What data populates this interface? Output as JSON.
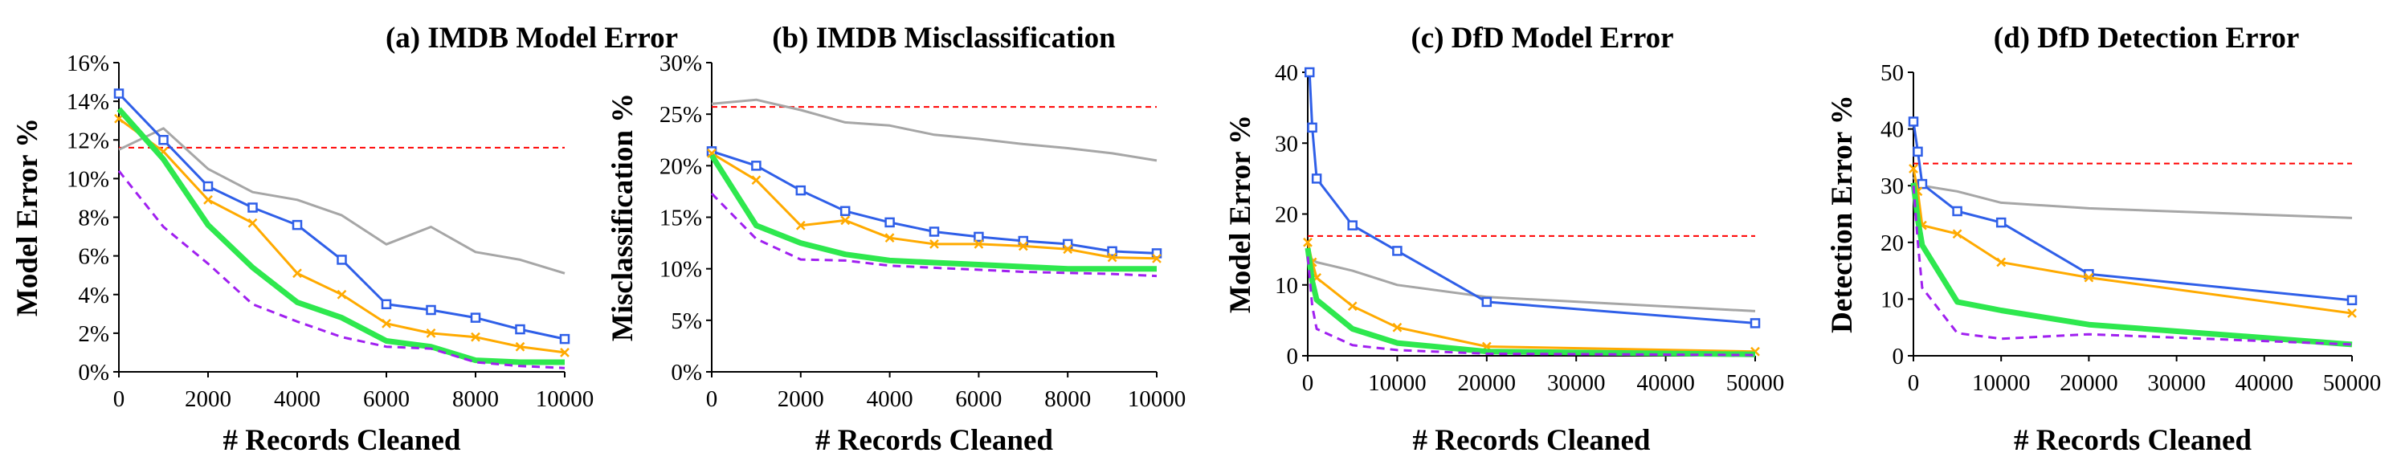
{
  "chart_data": [
    {
      "type": "line",
      "title": "(a) IMDB Model Error",
      "xlabel": "# Records Cleaned",
      "ylabel": "Model Error %",
      "xlim": [
        0,
        10000
      ],
      "ylim": [
        0,
        16
      ],
      "xticks": [
        0,
        2000,
        4000,
        6000,
        8000,
        10000
      ],
      "xtick_labels": [
        "0",
        "2000",
        "4000",
        "6000",
        "8000",
        "10000"
      ],
      "yticks": [
        0,
        2,
        4,
        6,
        8,
        10,
        12,
        14,
        16
      ],
      "ytick_labels": [
        "0%",
        "2%",
        "4%",
        "6%",
        "8%",
        "10%",
        "12%",
        "14%",
        "16%"
      ],
      "grid": false,
      "reference_line": 11.6,
      "series": [
        {
          "color": "#a6a6a6",
          "style": "solid",
          "width": 3,
          "marker": "none",
          "x": [
            0,
            1000,
            2000,
            3000,
            4000,
            5000,
            6000,
            7000,
            8000,
            9000,
            10000
          ],
          "y": [
            11.5,
            12.6,
            10.5,
            9.3,
            8.9,
            8.1,
            6.6,
            7.5,
            6.2,
            5.8,
            5.1
          ]
        },
        {
          "color": "#2f5fe8",
          "style": "solid",
          "width": 3,
          "marker": "square",
          "x": [
            0,
            1000,
            2000,
            3000,
            4000,
            5000,
            6000,
            7000,
            8000,
            9000,
            10000
          ],
          "y": [
            14.4,
            12.0,
            9.6,
            8.5,
            7.6,
            5.8,
            3.5,
            3.2,
            2.8,
            2.2,
            1.7
          ]
        },
        {
          "color": "#ffaa00",
          "style": "solid",
          "width": 3,
          "marker": "x",
          "x": [
            0,
            1000,
            2000,
            3000,
            4000,
            5000,
            6000,
            7000,
            8000,
            9000,
            10000
          ],
          "y": [
            13.1,
            11.4,
            8.9,
            7.7,
            5.1,
            4.0,
            2.5,
            2.0,
            1.8,
            1.3,
            1.0
          ]
        },
        {
          "color": "#2ee84e",
          "style": "solid",
          "width": 7,
          "marker": "none",
          "x": [
            0,
            1000,
            2000,
            3000,
            4000,
            5000,
            6000,
            7000,
            8000,
            9000,
            10000
          ],
          "y": [
            13.6,
            11.0,
            7.6,
            5.4,
            3.6,
            2.8,
            1.6,
            1.3,
            0.6,
            0.5,
            0.5
          ]
        },
        {
          "color": "#a020f0",
          "style": "dashed",
          "width": 3,
          "marker": "none",
          "x": [
            0,
            1000,
            2000,
            3000,
            4000,
            5000,
            6000,
            7000,
            8000,
            9000,
            10000
          ],
          "y": [
            10.4,
            7.5,
            5.6,
            3.5,
            2.6,
            1.8,
            1.3,
            1.2,
            0.5,
            0.3,
            0.2
          ]
        }
      ]
    },
    {
      "type": "line",
      "title": "(b) IMDB Misclassification",
      "xlabel": "# Records Cleaned",
      "ylabel": "Misclassification %",
      "xlim": [
        0,
        10000
      ],
      "ylim": [
        0,
        30
      ],
      "xticks": [
        0,
        2000,
        4000,
        6000,
        8000,
        10000
      ],
      "xtick_labels": [
        "0",
        "2000",
        "4000",
        "6000",
        "8000",
        "10000"
      ],
      "yticks": [
        0,
        5,
        10,
        15,
        20,
        25,
        30
      ],
      "ytick_labels": [
        "0%",
        "5%",
        "10%",
        "15%",
        "20%",
        "25%",
        "30%"
      ],
      "grid": false,
      "reference_line": 25.7,
      "series": [
        {
          "color": "#a6a6a6",
          "style": "solid",
          "width": 3,
          "marker": "none",
          "x": [
            0,
            1000,
            2000,
            3000,
            4000,
            5000,
            6000,
            7000,
            8000,
            9000,
            10000
          ],
          "y": [
            26.0,
            26.4,
            25.4,
            24.2,
            23.9,
            23.0,
            22.6,
            22.1,
            21.7,
            21.2,
            20.5
          ]
        },
        {
          "color": "#2f5fe8",
          "style": "solid",
          "width": 3,
          "marker": "square",
          "x": [
            0,
            1000,
            2000,
            3000,
            4000,
            5000,
            6000,
            7000,
            8000,
            9000,
            10000
          ],
          "y": [
            21.4,
            20.0,
            17.6,
            15.6,
            14.5,
            13.6,
            13.1,
            12.7,
            12.4,
            11.7,
            11.5
          ]
        },
        {
          "color": "#ffaa00",
          "style": "solid",
          "width": 3,
          "marker": "x",
          "x": [
            0,
            1000,
            2000,
            3000,
            4000,
            5000,
            6000,
            7000,
            8000,
            9000,
            10000
          ],
          "y": [
            21.2,
            18.6,
            14.2,
            14.7,
            13.0,
            12.4,
            12.4,
            12.2,
            11.9,
            11.1,
            11.0
          ]
        },
        {
          "color": "#2ee84e",
          "style": "solid",
          "width": 7,
          "marker": "none",
          "x": [
            0,
            1000,
            2000,
            3000,
            4000,
            5000,
            6000,
            7000,
            8000,
            9000,
            10000
          ],
          "y": [
            21.0,
            14.2,
            12.5,
            11.4,
            10.8,
            10.6,
            10.4,
            10.2,
            10.0,
            10.0,
            10.0
          ]
        },
        {
          "color": "#a020f0",
          "style": "dashed",
          "width": 3,
          "marker": "none",
          "x": [
            0,
            1000,
            2000,
            3000,
            4000,
            5000,
            6000,
            7000,
            8000,
            9000,
            10000
          ],
          "y": [
            17.3,
            12.9,
            10.9,
            10.8,
            10.3,
            10.1,
            9.9,
            9.7,
            9.6,
            9.5,
            9.3
          ]
        }
      ]
    },
    {
      "type": "line",
      "title": "(c) DfD Model Error",
      "xlabel": "# Records Cleaned",
      "ylabel": "Model Error %",
      "xlim": [
        0,
        50000
      ],
      "ylim": [
        0,
        40
      ],
      "xticks": [
        0,
        10000,
        20000,
        30000,
        40000,
        50000
      ],
      "xtick_labels": [
        "0",
        "10000",
        "20000",
        "30000",
        "40000",
        "50000"
      ],
      "yticks": [
        0,
        10,
        20,
        30,
        40
      ],
      "ytick_labels": [
        "0",
        "10",
        "20",
        "30",
        "40"
      ],
      "grid": false,
      "reference_line": 16.9,
      "series": [
        {
          "color": "#a6a6a6",
          "style": "solid",
          "width": 3,
          "marker": "none",
          "x": [
            0,
            500,
            1000,
            5000,
            10000,
            20000,
            50000
          ],
          "y": [
            14.0,
            13.6,
            13.2,
            12.0,
            10.0,
            8.3,
            6.3
          ]
        },
        {
          "color": "#2f5fe8",
          "style": "solid",
          "width": 3,
          "marker": "square",
          "x": [
            200,
            500,
            1000,
            5000,
            10000,
            20000,
            50000
          ],
          "y": [
            40.0,
            32.2,
            25.0,
            18.4,
            14.8,
            7.6,
            4.6
          ]
        },
        {
          "color": "#ffaa00",
          "style": "solid",
          "width": 3,
          "marker": "x",
          "x": [
            0,
            500,
            1000,
            5000,
            10000,
            20000,
            50000
          ],
          "y": [
            16.0,
            13.2,
            11.0,
            7.0,
            4.0,
            1.3,
            0.6
          ]
        },
        {
          "color": "#2ee84e",
          "style": "solid",
          "width": 7,
          "marker": "none",
          "x": [
            0,
            500,
            1000,
            5000,
            10000,
            20000,
            50000
          ],
          "y": [
            15.2,
            10.5,
            7.9,
            3.8,
            1.8,
            0.6,
            0.2
          ]
        },
        {
          "color": "#a020f0",
          "style": "dashed",
          "width": 3,
          "marker": "none",
          "x": [
            0,
            500,
            1000,
            5000,
            10000,
            20000,
            50000
          ],
          "y": [
            14.0,
            7.0,
            3.8,
            1.5,
            0.8,
            0.3,
            0.1
          ]
        }
      ]
    },
    {
      "type": "line",
      "title": "(d) DfD Detection Error",
      "xlabel": "# Records Cleaned",
      "ylabel": "Detection Error %",
      "xlim": [
        0,
        50000
      ],
      "ylim": [
        0,
        50
      ],
      "xticks": [
        0,
        10000,
        20000,
        30000,
        40000,
        50000
      ],
      "xtick_labels": [
        "0",
        "10000",
        "20000",
        "30000",
        "40000",
        "50000"
      ],
      "yticks": [
        0,
        10,
        20,
        30,
        40,
        50
      ],
      "ytick_labels": [
        "0",
        "10",
        "20",
        "30",
        "40",
        "50"
      ],
      "grid": false,
      "reference_line": 33.9,
      "series": [
        {
          "color": "#a6a6a6",
          "style": "solid",
          "width": 3,
          "marker": "none",
          "x": [
            0,
            500,
            1000,
            5000,
            10000,
            20000,
            50000
          ],
          "y": [
            31.5,
            30.5,
            30.0,
            29.0,
            27.0,
            26.0,
            24.3
          ]
        },
        {
          "color": "#2f5fe8",
          "style": "solid",
          "width": 3,
          "marker": "square",
          "x": [
            0,
            500,
            1000,
            5000,
            10000,
            20000,
            50000
          ],
          "y": [
            41.3,
            36.0,
            30.3,
            25.5,
            23.5,
            14.4,
            9.8
          ]
        },
        {
          "color": "#ffaa00",
          "style": "solid",
          "width": 3,
          "marker": "x",
          "x": [
            0,
            500,
            1000,
            5000,
            10000,
            20000,
            50000
          ],
          "y": [
            33.0,
            29.0,
            23.0,
            21.5,
            16.5,
            13.8,
            7.5
          ]
        },
        {
          "color": "#2ee84e",
          "style": "solid",
          "width": 7,
          "marker": "none",
          "x": [
            0,
            500,
            1000,
            5000,
            10000,
            20000,
            50000
          ],
          "y": [
            30.5,
            24.0,
            19.5,
            9.5,
            8.0,
            5.5,
            2.0
          ]
        },
        {
          "color": "#a020f0",
          "style": "dashed",
          "width": 3,
          "marker": "none",
          "x": [
            0,
            500,
            1000,
            5000,
            10000,
            20000,
            50000
          ],
          "y": [
            30.0,
            20.0,
            12.0,
            4.0,
            3.0,
            3.8,
            2.0
          ]
        }
      ]
    }
  ],
  "colors": {
    "reference_line": "#ff0000",
    "axis": "#000000",
    "background": "#ffffff"
  }
}
